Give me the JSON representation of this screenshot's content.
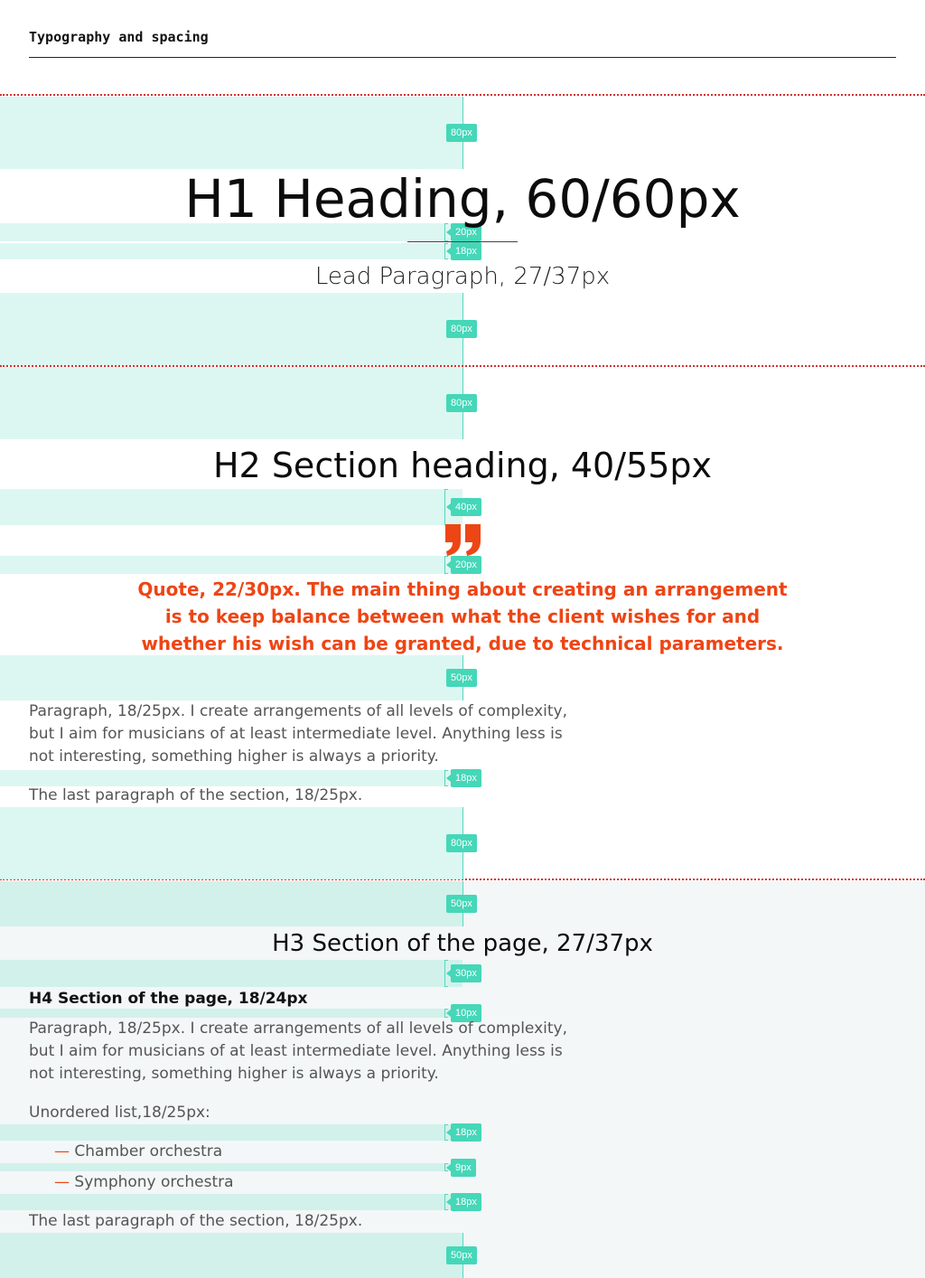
{
  "header": {
    "title": "Typography and spacing"
  },
  "spacing_labels": {
    "s1": "80px",
    "s2": "20px",
    "s3": "18px",
    "s4": "80px",
    "s5": "80px",
    "s6": "40px",
    "s7": "20px",
    "s8": "50px",
    "s9": "18px",
    "s10": "80px",
    "s11": "50px",
    "s12": "30px",
    "s13": "10px",
    "s14": "18px",
    "s15": "9px",
    "s16": "18px",
    "s17": "50px"
  },
  "content": {
    "h1": "H1 Heading, 60/60px",
    "lead": "Lead Paragraph, 27/37px",
    "h2": "H2 Section heading, 40/55px",
    "quote": "Quote, 22/30px. The main thing about creating an arrangement is to keep balance between what the client wishes for and whether his wish can be granted, due to technical parameters.",
    "paragraph1": "Paragraph, 18/25px. I create arrangements of all levels of complexity, but I aim for musicians of at least intermediate level. Anything less is not interesting, something higher is always a priority.",
    "last_paragraph1": "The last paragraph of the section, 18/25px.",
    "h3": "H3 Section of the page, 27/37px",
    "h4": "H4 Section of the page, 18/24px",
    "paragraph2": "Paragraph, 18/25px. I create arrangements of all levels of complexity, but I aim for musicians of at least intermediate level. Anything less is not interesting, something higher is always a priority.",
    "list_intro": "Unordered list,18/25px:",
    "list_marker": "—",
    "list_items": [
      "Chamber orchestra",
      "Symphony orchestra"
    ],
    "last_paragraph2": "The last paragraph of the section, 18/25px."
  },
  "colors": {
    "accent": "#ee4514",
    "spacing_fill": "#dcf7f1",
    "badge": "#45d7b8",
    "divider": "#d83030"
  }
}
